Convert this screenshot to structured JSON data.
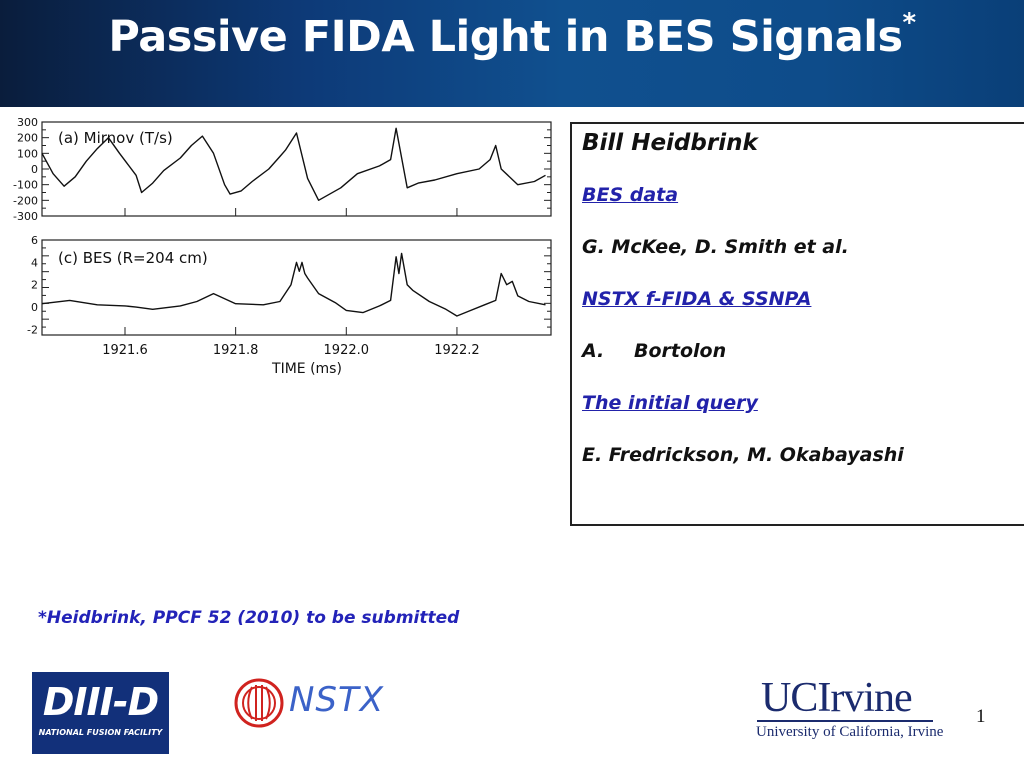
{
  "title": {
    "text": "Passive FIDA Light in BES Signals",
    "superscript": "*"
  },
  "figure": {
    "panel_a": {
      "label": "(a) Mirnov (T/s)",
      "y_ticks": [
        "300",
        "200",
        "100",
        "0",
        "-100",
        "-200",
        "-300"
      ]
    },
    "panel_c": {
      "label": "(c) BES (R=204 cm)",
      "y_ticks": [
        "6",
        "4",
        "2",
        "0",
        "-2"
      ]
    },
    "x_ticks": [
      "1921.6",
      "1921.8",
      "1922.0",
      "1922.2"
    ],
    "xlabel": "TIME (ms)"
  },
  "chart_data": [
    {
      "type": "line",
      "title": "(a) Mirnov (T/s)",
      "xlabel": "",
      "ylabel": "",
      "xlim": [
        1921.45,
        1922.37
      ],
      "ylim": [
        -300,
        300
      ],
      "series": [
        {
          "x": [
            1921.45,
            1921.47,
            1921.49,
            1921.51,
            1921.53,
            1921.55,
            1921.57,
            1921.59,
            1921.62,
            1921.63,
            1921.65,
            1921.67,
            1921.7,
            1921.72,
            1921.74,
            1921.76,
            1921.78,
            1921.79,
            1921.81,
            1921.83,
            1921.86,
            1921.88,
            1921.89,
            1921.91,
            1921.93,
            1921.95,
            1921.99,
            1922.02,
            1922.06,
            1922.08,
            1922.09,
            1922.11,
            1922.13,
            1922.16,
            1922.2,
            1922.24,
            1922.26,
            1922.27,
            1922.28,
            1922.31,
            1922.34,
            1922.36
          ],
          "y": [
            100,
            -30,
            -110,
            -50,
            50,
            130,
            200,
            100,
            -40,
            -150,
            -90,
            -10,
            70,
            150,
            210,
            100,
            -100,
            -160,
            -140,
            -80,
            0,
            80,
            120,
            230,
            -60,
            -200,
            -120,
            -30,
            20,
            60,
            260,
            -120,
            -90,
            -70,
            -30,
            0,
            60,
            150,
            0,
            -100,
            -80,
            -40
          ]
        }
      ]
    },
    {
      "type": "line",
      "title": "(c) BES (R=204 cm)",
      "xlabel": "TIME (ms)",
      "ylabel": "",
      "xlim": [
        1921.45,
        1922.37
      ],
      "ylim": [
        -2.5,
        6
      ],
      "series": [
        {
          "x": [
            1921.45,
            1921.5,
            1921.55,
            1921.6,
            1921.62,
            1921.65,
            1921.7,
            1921.73,
            1921.76,
            1921.8,
            1921.85,
            1921.88,
            1921.9,
            1921.91,
            1921.915,
            1921.92,
            1921.925,
            1921.93,
            1921.95,
            1921.98,
            1922.0,
            1922.03,
            1922.06,
            1922.08,
            1922.09,
            1922.095,
            1922.1,
            1922.11,
            1922.12,
            1922.15,
            1922.18,
            1922.2,
            1922.22,
            1922.25,
            1922.27,
            1922.28,
            1922.29,
            1922.3,
            1922.31,
            1922.33,
            1922.36
          ],
          "y": [
            0.3,
            0.6,
            0.2,
            0.1,
            0.0,
            -0.2,
            0.1,
            0.5,
            1.2,
            0.3,
            0.2,
            0.5,
            2.0,
            4.0,
            3.2,
            4.0,
            3.0,
            2.6,
            1.2,
            0.4,
            -0.3,
            -0.5,
            0.1,
            0.6,
            4.5,
            3.0,
            4.8,
            2.0,
            1.5,
            0.5,
            -0.2,
            -0.8,
            -0.4,
            0.2,
            0.6,
            3.0,
            2.0,
            2.3,
            1.0,
            0.5,
            0.2
          ]
        }
      ]
    }
  ],
  "credits": [
    {
      "text": "Bill Heidbrink",
      "style": "big"
    },
    {
      "text": "BES data",
      "style": "link"
    },
    {
      "text": "G. McKee, D. Smith et al.",
      "style": "plain"
    },
    {
      "text": "NSTX f-FIDA & SSNPA",
      "style": "link"
    },
    {
      "num": "A.",
      "text": "Bortolon",
      "style": "list"
    },
    {
      "text": "The initial query",
      "style": "link"
    },
    {
      "text": "E. Fredrickson, M. Okabayashi",
      "style": "plain"
    }
  ],
  "footnote": "*Heidbrink, PPCF 52 (2010) to be submitted",
  "slide_number": "1",
  "logos": {
    "diiid": {
      "main": "DIII-D",
      "sub": "NATIONAL FUSION FACILITY"
    },
    "nstx": {
      "main": "NSTX"
    },
    "uci": {
      "main": "UCIrvine",
      "sub": "University of California, Irvine"
    }
  },
  "colors": {
    "title_bar": "#0d3a78",
    "link": "#2222aa",
    "footnote": "#2323b8",
    "uci_blue": "#1b2b6e",
    "nstx_red": "#d0231f"
  }
}
